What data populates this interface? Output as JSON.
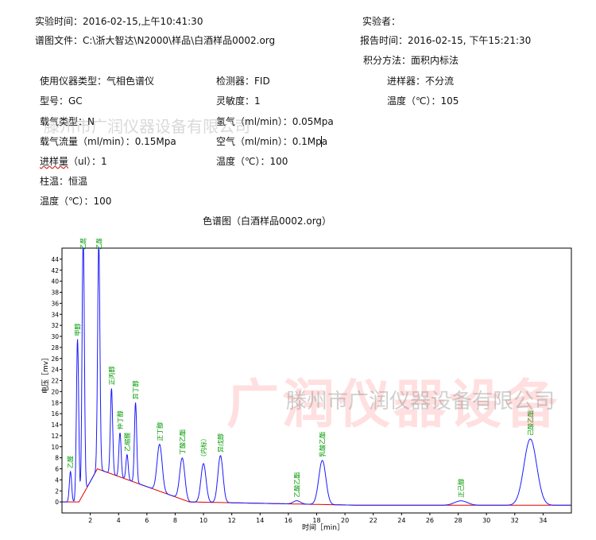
{
  "header": {
    "exp_time": "实验时间：2016-02-15,上午10:41:30",
    "experimenter": "实验者：",
    "spectrum_file": "谱图文件：C:\\浙大智达\\N2000\\样品\\白酒样品0002.org",
    "report_time": "报告时间：2016-02-15, 下午15:21:30",
    "integration_method": "积分方法：面积内标法"
  },
  "params": {
    "instrument_type": "使用仪器类型：气相色谱仪",
    "detector": "检测器：FID",
    "injector": "进样器：不分流",
    "model": "型号：GC",
    "sensitivity": "灵敏度：1",
    "injector_temp": "温度（℃）：105",
    "carrier_type": "载气类型：N",
    "hydrogen": "氢气（ml/min）：0.05Mpa",
    "carrier_flow": "载气流量（ml/min）：0.15Mpa",
    "air": "空气（ml/min）：0.1Mpa",
    "injection_volume_label": "进样量",
    "injection_volume_unit": "（ul）：1",
    "detector_temp": "温度（℃）：100",
    "column_temp": "柱温：恒温",
    "column_temp_value": "温度（℃）：100"
  },
  "chart_title": "色谱图（白酒样品0002.org）",
  "watermarks": {
    "big": "广润仪器设备",
    "company": "滕州市广润仪器设备有限公司",
    "header": "滕州市广润仪器设备有限公司"
  },
  "colors": {
    "trace": "#1a1aff",
    "baseline": "#e00000",
    "label": "#009900",
    "watermark": "#ff5050"
  },
  "chart_data": {
    "type": "line",
    "xlabel": "时间［min］",
    "ylabel": "电压［mv］",
    "xlim": [
      0,
      36
    ],
    "ylim": [
      -2,
      46
    ],
    "xticks": [
      2,
      4,
      6,
      8,
      10,
      12,
      14,
      16,
      18,
      20,
      22,
      24,
      26,
      28,
      30,
      32,
      34
    ],
    "yticks": [
      0,
      2,
      4,
      6,
      8,
      10,
      12,
      14,
      16,
      18,
      20,
      22,
      24,
      26,
      28,
      30,
      32,
      34,
      36,
      38,
      40,
      42,
      44
    ],
    "peaks": [
      {
        "name": "乙醛",
        "rt": 0.6,
        "height": 5.5
      },
      {
        "name": "甲醇",
        "rt": 1.1,
        "height": 29.5
      },
      {
        "name": "乙醇",
        "rt": 1.5,
        "height": 48
      },
      {
        "name": "乙酸乙酯",
        "rt": 2.6,
        "height": 41
      },
      {
        "name": "正丙醇",
        "rt": 3.5,
        "height": 15.5
      },
      {
        "name": "仲丁醇",
        "rt": 4.1,
        "height": 8
      },
      {
        "name": "乙缩醛",
        "rt": 4.6,
        "height": 4.5
      },
      {
        "name": "异丁醇",
        "rt": 5.2,
        "height": 14.5
      },
      {
        "name": "正丁醇",
        "rt": 6.9,
        "height": 8.5
      },
      {
        "name": "丁酸乙酯",
        "rt": 8.5,
        "height": 7.5
      },
      {
        "name": "（内标）",
        "rt": 10.0,
        "height": 7.0
      },
      {
        "name": "异戊醇",
        "rt": 11.2,
        "height": 8.5
      },
      {
        "name": "乙酸乙酯",
        "rt": 16.6,
        "height": 0.6
      },
      {
        "name": "乳酸乙酯",
        "rt": 18.4,
        "height": 8.0
      },
      {
        "name": "正己醇",
        "rt": 28.2,
        "height": 0.8
      },
      {
        "name": "己酸乙酯",
        "rt": 33.1,
        "height": 12.0
      }
    ]
  }
}
